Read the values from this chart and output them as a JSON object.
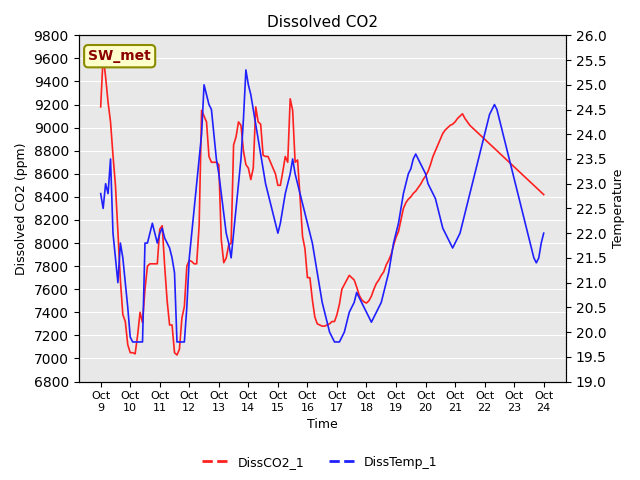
{
  "title": "Dissolved CO2",
  "xlabel": "Time",
  "ylabel_left": "Dissolved CO2 (ppm)",
  "ylabel_right": "Temperature",
  "ylim_left": [
    6800,
    9800
  ],
  "ylim_right": [
    19.0,
    26.0
  ],
  "yticks_left": [
    6800,
    7000,
    7200,
    7400,
    7600,
    7800,
    8000,
    8200,
    8400,
    8600,
    8800,
    9000,
    9200,
    9400,
    9600,
    9800
  ],
  "yticks_right": [
    19.0,
    19.5,
    20.0,
    20.5,
    21.0,
    21.5,
    22.0,
    22.5,
    23.0,
    23.5,
    24.0,
    24.5,
    25.0,
    25.5,
    26.0
  ],
  "background_color": "#e8e8e8",
  "annotation_text": "SW_met",
  "annotation_facecolor": "#ffffcc",
  "annotation_edgecolor": "#8B8B00",
  "annotation_textcolor": "#8B0000",
  "line1_color": "#ff2020",
  "line2_color": "#2020ff",
  "line1_label": "DissCO2_1",
  "line2_label": "DissTemp_1",
  "legend_dash": true,
  "xtick_labels": [
    "Oct 9",
    "Oct 10",
    "Oct 11",
    "Oct 12",
    "Oct 13",
    "Oct 14",
    "Oct 15",
    "Oct 16",
    "Oct 17",
    "Oct 18",
    "Oct 19",
    "Oct 20",
    "Oct 21",
    "Oct 22",
    "Oct 23",
    "Oct 24"
  ],
  "co2_data": [
    9180,
    9620,
    9440,
    9220,
    9050,
    8760,
    8500,
    8100,
    7680,
    7380,
    7320,
    7120,
    7050,
    7050,
    7040,
    7200,
    7400,
    7310,
    7600,
    7800,
    7820,
    7820,
    7820,
    7820,
    8120,
    8150,
    7800,
    7500,
    7290,
    7290,
    7050,
    7030,
    7080,
    7350,
    7450,
    7800,
    7850,
    7840,
    7820,
    7820,
    8150,
    9150,
    9100,
    9050,
    8750,
    8700,
    8700,
    8700,
    8680,
    8030,
    7830,
    7870,
    7980,
    8000,
    8850,
    8920,
    9050,
    9020,
    8800,
    8680,
    8650,
    8550,
    8650,
    9180,
    9050,
    9030,
    8760,
    8750,
    8750,
    8700,
    8650,
    8600,
    8500,
    8500,
    8620,
    8750,
    8700,
    9250,
    9150,
    8700,
    8720,
    8400,
    8060,
    7950,
    7700,
    7700,
    7510,
    7360,
    7300,
    7290,
    7280,
    7280,
    7290,
    7300,
    7320,
    7320,
    7380,
    7470,
    7600,
    7640,
    7680,
    7720,
    7700,
    7680,
    7620,
    7550,
    7510,
    7490,
    7480,
    7500,
    7540,
    7600,
    7650,
    7680,
    7720,
    7750,
    7810,
    7850,
    7900,
    7980,
    8050,
    8100,
    8200,
    8300,
    8350,
    8380,
    8400,
    8430,
    8450,
    8480,
    8510,
    8550,
    8580,
    8620,
    8680,
    8750,
    8800,
    8850,
    8900,
    8950,
    8980,
    9000,
    9020,
    9030,
    9050,
    9080,
    9100,
    9120,
    9080,
    9050,
    9020,
    9000,
    8980,
    8960,
    8940,
    8920,
    8900,
    8880,
    8860,
    8840,
    8820,
    8800,
    8780,
    8760,
    8740,
    8720,
    8700,
    8680,
    8660,
    8640,
    8620,
    8600,
    8580,
    8560,
    8540,
    8520,
    8500,
    8480,
    8460,
    8440,
    8420
  ],
  "temp_data": [
    22.8,
    22.5,
    23.0,
    22.8,
    23.5,
    22.0,
    21.5,
    21.0,
    21.8,
    21.5,
    21.0,
    20.5,
    19.9,
    19.8,
    19.8,
    19.8,
    19.8,
    19.8,
    21.8,
    21.8,
    22.0,
    22.2,
    22.0,
    21.8,
    22.0,
    22.1,
    21.9,
    21.8,
    21.7,
    21.5,
    21.2,
    19.8,
    19.8,
    19.8,
    19.8,
    20.5,
    21.5,
    22.0,
    22.5,
    23.0,
    23.5,
    24.0,
    25.0,
    24.8,
    24.6,
    24.5,
    24.0,
    23.5,
    23.2,
    22.8,
    22.4,
    22.0,
    21.8,
    21.5,
    22.0,
    22.5,
    23.0,
    23.5,
    24.3,
    25.3,
    25.0,
    24.8,
    24.5,
    24.2,
    23.9,
    23.6,
    23.3,
    23.0,
    22.8,
    22.6,
    22.4,
    22.2,
    22.0,
    22.2,
    22.5,
    22.8,
    23.0,
    23.2,
    23.5,
    23.2,
    23.0,
    22.8,
    22.6,
    22.4,
    22.2,
    22.0,
    21.8,
    21.5,
    21.2,
    20.9,
    20.6,
    20.4,
    20.2,
    20.0,
    19.9,
    19.8,
    19.8,
    19.8,
    19.9,
    20.0,
    20.2,
    20.4,
    20.5,
    20.6,
    20.8,
    20.7,
    20.6,
    20.5,
    20.4,
    20.3,
    20.2,
    20.3,
    20.4,
    20.5,
    20.6,
    20.8,
    21.0,
    21.2,
    21.5,
    21.8,
    22.0,
    22.2,
    22.5,
    22.8,
    23.0,
    23.2,
    23.3,
    23.5,
    23.6,
    23.5,
    23.4,
    23.3,
    23.2,
    23.0,
    22.9,
    22.8,
    22.7,
    22.5,
    22.3,
    22.1,
    22.0,
    21.9,
    21.8,
    21.7,
    21.8,
    21.9,
    22.0,
    22.2,
    22.4,
    22.6,
    22.8,
    23.0,
    23.2,
    23.4,
    23.6,
    23.8,
    24.0,
    24.2,
    24.4,
    24.5,
    24.6,
    24.5,
    24.3,
    24.1,
    23.9,
    23.7,
    23.5,
    23.3,
    23.1,
    22.9,
    22.7,
    22.5,
    22.3,
    22.1,
    21.9,
    21.7,
    21.5,
    21.4,
    21.5,
    21.8,
    22.0
  ]
}
